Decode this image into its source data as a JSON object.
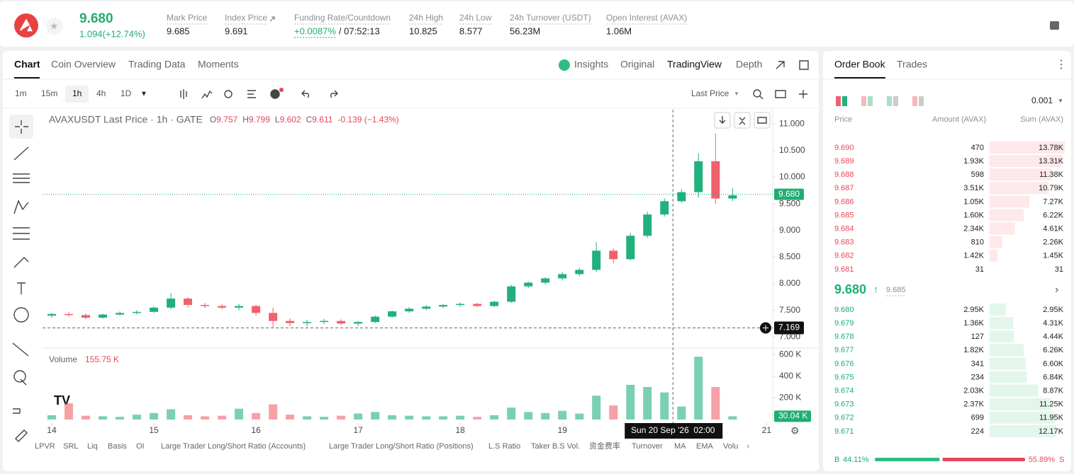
{
  "header": {
    "price": "9.680",
    "change": "1.094(+12.74%)",
    "stats": [
      {
        "label": "Mark Price",
        "value": "9.685"
      },
      {
        "label": "Index Price",
        "value": "9.691"
      },
      {
        "label": "Funding Rate/Countdown",
        "value": "+0.0087%",
        "suffix": "/ 07:52:13"
      },
      {
        "label": "24h High",
        "value": "10.825"
      },
      {
        "label": "24h Low",
        "value": "8.577"
      },
      {
        "label": "24h Turnover (USDT)",
        "value": "56.23M"
      },
      {
        "label": "Open Interest (AVAX)",
        "value": "1.06M"
      }
    ]
  },
  "tabs": {
    "main": [
      "Chart",
      "Coin Overview",
      "Trading Data",
      "Moments"
    ],
    "views": [
      "Insights",
      "Original",
      "TradingView",
      "Depth"
    ]
  },
  "toolbar": {
    "intervals": [
      "1m",
      "15m",
      "1h",
      "4h",
      "1D"
    ],
    "price_type": "Last Price"
  },
  "chart_data": {
    "type": "candlestick",
    "legend": {
      "title": "AVAXUSDT Last Price · 1h · GATE",
      "ohlc": [
        {
          "k": "O",
          "v": "9.757"
        },
        {
          "k": "H",
          "v": "9.799"
        },
        {
          "k": "L",
          "v": "9.602"
        },
        {
          "k": "C",
          "v": "9.611"
        }
      ],
      "change": "-0.139 (−1.43%)"
    },
    "x": [
      14,
      14.167,
      14.333,
      14.5,
      14.667,
      14.833,
      15,
      15.167,
      15.333,
      15.5,
      15.667,
      15.833,
      16,
      16.167,
      16.333,
      16.5,
      16.667,
      16.833,
      17,
      17.167,
      17.333,
      17.5,
      17.667,
      17.833,
      18,
      18.167,
      18.333,
      18.5,
      18.667,
      18.833,
      19,
      19.167,
      19.333,
      19.5,
      19.667,
      19.833,
      20,
      20.167,
      20.333,
      20.5,
      20.667
    ],
    "open": [
      7.4,
      7.43,
      7.41,
      7.36,
      7.42,
      7.45,
      7.47,
      7.55,
      7.72,
      7.6,
      7.58,
      7.55,
      7.58,
      7.45,
      7.3,
      7.26,
      7.28,
      7.3,
      7.25,
      7.28,
      7.38,
      7.48,
      7.53,
      7.57,
      7.6,
      7.62,
      7.58,
      7.66,
      7.95,
      8.02,
      8.1,
      8.18,
      8.26,
      8.62,
      8.46,
      8.9,
      9.3,
      9.55,
      9.72,
      10.3,
      9.6
    ],
    "high": [
      7.45,
      7.47,
      7.44,
      7.44,
      7.48,
      7.5,
      7.58,
      7.82,
      7.75,
      7.64,
      7.62,
      7.62,
      7.6,
      7.55,
      7.35,
      7.32,
      7.34,
      7.33,
      7.3,
      7.4,
      7.5,
      7.56,
      7.6,
      7.62,
      7.65,
      7.64,
      7.68,
      7.98,
      8.04,
      8.12,
      8.22,
      8.3,
      8.78,
      8.66,
      8.95,
      9.35,
      9.6,
      9.78,
      10.45,
      10.82,
      9.8
    ],
    "low": [
      7.36,
      7.38,
      7.33,
      7.34,
      7.4,
      7.42,
      7.45,
      7.52,
      7.55,
      7.54,
      7.52,
      7.5,
      7.4,
      7.18,
      7.2,
      7.2,
      7.24,
      7.22,
      7.2,
      7.26,
      7.36,
      7.45,
      7.5,
      7.54,
      7.56,
      7.56,
      7.56,
      7.64,
      7.92,
      7.98,
      8.06,
      8.14,
      8.22,
      8.38,
      8.44,
      8.86,
      9.26,
      9.52,
      9.62,
      9.5,
      9.55
    ],
    "close": [
      7.43,
      7.41,
      7.36,
      7.42,
      7.45,
      7.47,
      7.55,
      7.72,
      7.6,
      7.58,
      7.55,
      7.58,
      7.45,
      7.3,
      7.26,
      7.28,
      7.3,
      7.25,
      7.28,
      7.38,
      7.48,
      7.53,
      7.57,
      7.6,
      7.62,
      7.58,
      7.66,
      7.95,
      8.02,
      8.1,
      8.18,
      8.26,
      8.62,
      8.46,
      8.9,
      9.3,
      9.55,
      9.72,
      10.3,
      9.6,
      9.66
    ],
    "volume": [
      40,
      150,
      35,
      30,
      25,
      45,
      60,
      95,
      40,
      30,
      35,
      100,
      60,
      140,
      45,
      30,
      25,
      35,
      55,
      70,
      40,
      35,
      30,
      30,
      35,
      25,
      40,
      110,
      70,
      60,
      80,
      55,
      220,
      130,
      320,
      300,
      250,
      120,
      580,
      300,
      30.04
    ],
    "up_color": "#22b07d",
    "down_color": "#f0616d",
    "xlim": [
      13.91,
      21.06
    ],
    "xticks": [
      14,
      15,
      16,
      17,
      18,
      19,
      21
    ],
    "ylim": [
      6.79,
      11.27
    ],
    "yticks": [
      {
        "value": 7,
        "label": "7.000"
      },
      {
        "value": 7.5,
        "label": "7.500"
      },
      {
        "value": 8,
        "label": "8.000"
      },
      {
        "value": 8.5,
        "label": "8.500"
      },
      {
        "value": 9,
        "label": "9.000"
      },
      {
        "value": 9.5,
        "label": "9.500"
      },
      {
        "value": 10,
        "label": "10.000"
      },
      {
        "value": 10.5,
        "label": "10.500"
      },
      {
        "value": 11,
        "label": "11.000"
      }
    ],
    "y2lim": [
      0,
      640
    ],
    "y2ticks": [
      {
        "value": 200,
        "label": "200 K"
      },
      {
        "value": 400,
        "label": "400 K"
      },
      {
        "value": 600,
        "label": "600 K"
      }
    ],
    "grid": false,
    "last_price": {
      "value": 9.68,
      "label": "9.680"
    },
    "crosshair": {
      "x": 20.083,
      "x_label": "Sun 20 Sep '26  02:00",
      "y": {
        "value": 7.169,
        "label": "7.169"
      }
    },
    "volume_title": "Volume",
    "volume_legend": "155.75 K",
    "last_volume_label": "30.04 K"
  },
  "bottom_bar": [
    "LPVR",
    "SRL",
    "Liq",
    "Basis",
    "OI",
    "Large Trader Long/Short Ratio (Accounts)",
    "Large Trader Long/Short Ratio (Positions)",
    "L.S Ratio",
    "Taker B.S Vol.",
    "资金费率",
    "Turnover",
    "MA",
    "EMA",
    "Volu"
  ],
  "order_book": {
    "tabs": [
      "Order Book",
      "Trades"
    ],
    "precision": "0.001",
    "columns": [
      "Price",
      "Amount (AVAX)",
      "Sum (AVAX)"
    ],
    "asks": {
      "price": [
        "9.690",
        "9.689",
        "9.688",
        "9.687",
        "9.686",
        "9.685",
        "9.684",
        "9.683",
        "9.682",
        "9.681"
      ],
      "amount": [
        "470",
        "1.93K",
        "598",
        "3.51K",
        "1.05K",
        "1.60K",
        "2.34K",
        "810",
        "1.42K",
        "31"
      ],
      "sum": [
        13780,
        13310,
        11380,
        10790,
        7270,
        6220,
        4610,
        2260,
        1450,
        31
      ],
      "sum_labels": [
        "13.78K",
        "13.31K",
        "11.38K",
        "10.79K",
        "7.27K",
        "6.22K",
        "4.61K",
        "2.26K",
        "1.45K",
        "31"
      ]
    },
    "mid": {
      "price": "9.680",
      "mark": "9.685"
    },
    "bids": {
      "price": [
        "9.680",
        "9.679",
        "9.678",
        "9.677",
        "9.676",
        "9.675",
        "9.674",
        "9.673",
        "9.672",
        "9.671"
      ],
      "amount": [
        "2.95K",
        "1.36K",
        "127",
        "1.82K",
        "341",
        "234",
        "2.03K",
        "2.37K",
        "699",
        "224"
      ],
      "sum": [
        2950,
        4310,
        4440,
        6260,
        6600,
        6840,
        8870,
        11250,
        11950,
        12170
      ],
      "sum_labels": [
        "2.95K",
        "4.31K",
        "4.44K",
        "6.26K",
        "6.60K",
        "6.84K",
        "8.87K",
        "11.25K",
        "11.95K",
        "12.17K"
      ]
    },
    "ratio": {
      "sides": [
        "B",
        "S"
      ],
      "values": [
        44.11,
        55.89
      ],
      "value_labels": [
        "44.11%",
        "55.89%"
      ]
    }
  }
}
